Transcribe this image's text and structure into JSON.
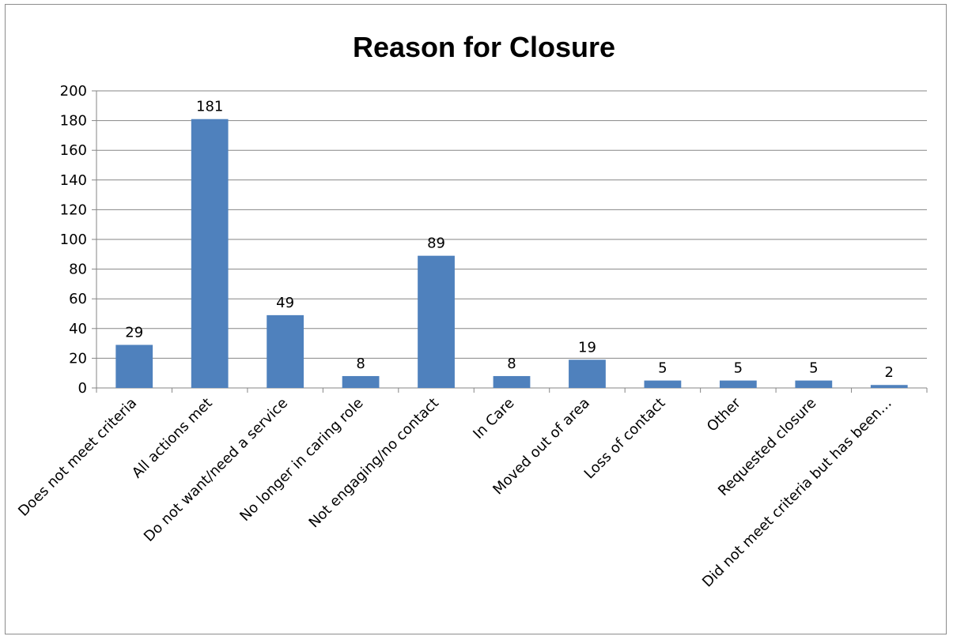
{
  "chart_data": {
    "type": "bar",
    "title": "Reason for Closure",
    "xlabel": "",
    "ylabel": "",
    "ylim": [
      0,
      200
    ],
    "yticks": [
      0,
      20,
      40,
      60,
      80,
      100,
      120,
      140,
      160,
      180,
      200
    ],
    "grid": true,
    "legend": "none",
    "bar_color": "#4f81bd",
    "categories": [
      "Does not meet criteria",
      "All actions met",
      "Do not want/need a service",
      "No longer in caring role",
      "Not engaging/no contact",
      "In Care",
      "Moved out of area",
      "Loss of contact",
      "Other",
      "Requested closure",
      "Did not meet criteria but has been…"
    ],
    "values": [
      29,
      181,
      49,
      8,
      89,
      8,
      19,
      5,
      5,
      5,
      2
    ]
  }
}
